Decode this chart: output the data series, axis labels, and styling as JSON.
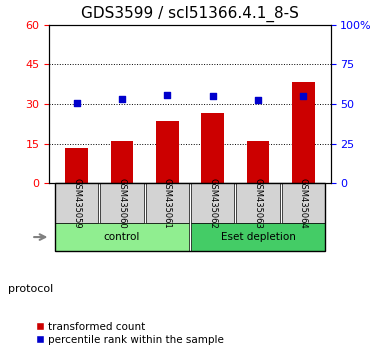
{
  "title": "GDS3599 / scl51366.4.1_8-S",
  "categories": [
    "GSM435059",
    "GSM435060",
    "GSM435061",
    "GSM435062",
    "GSM435063",
    "GSM435064"
  ],
  "bar_values": [
    13.5,
    16.0,
    23.5,
    26.5,
    16.0,
    38.5
  ],
  "scatter_values": [
    50.5,
    53.5,
    55.5,
    55.0,
    52.5,
    55.0
  ],
  "bar_color": "#CC0000",
  "scatter_color": "#0000CC",
  "left_ylim": [
    0,
    60
  ],
  "right_ylim": [
    0,
    100
  ],
  "left_yticks": [
    0,
    15,
    30,
    45,
    60
  ],
  "right_yticks": [
    0,
    25,
    50,
    75,
    100
  ],
  "right_yticklabels": [
    "0",
    "25",
    "50",
    "75",
    "100%"
  ],
  "groups": [
    {
      "label": "control",
      "indices": [
        0,
        1,
        2
      ],
      "color": "#90EE90"
    },
    {
      "label": "Eset depletion",
      "indices": [
        3,
        4,
        5
      ],
      "color": "#44CC66"
    }
  ],
  "protocol_label": "protocol",
  "legend_bar_label": "transformed count",
  "legend_scatter_label": "percentile rank within the sample",
  "title_fontsize": 11,
  "tick_fontsize": 8,
  "background_color": "#ffffff",
  "plot_bg_color": "#ffffff",
  "xticklabel_area_color": "#d3d3d3"
}
